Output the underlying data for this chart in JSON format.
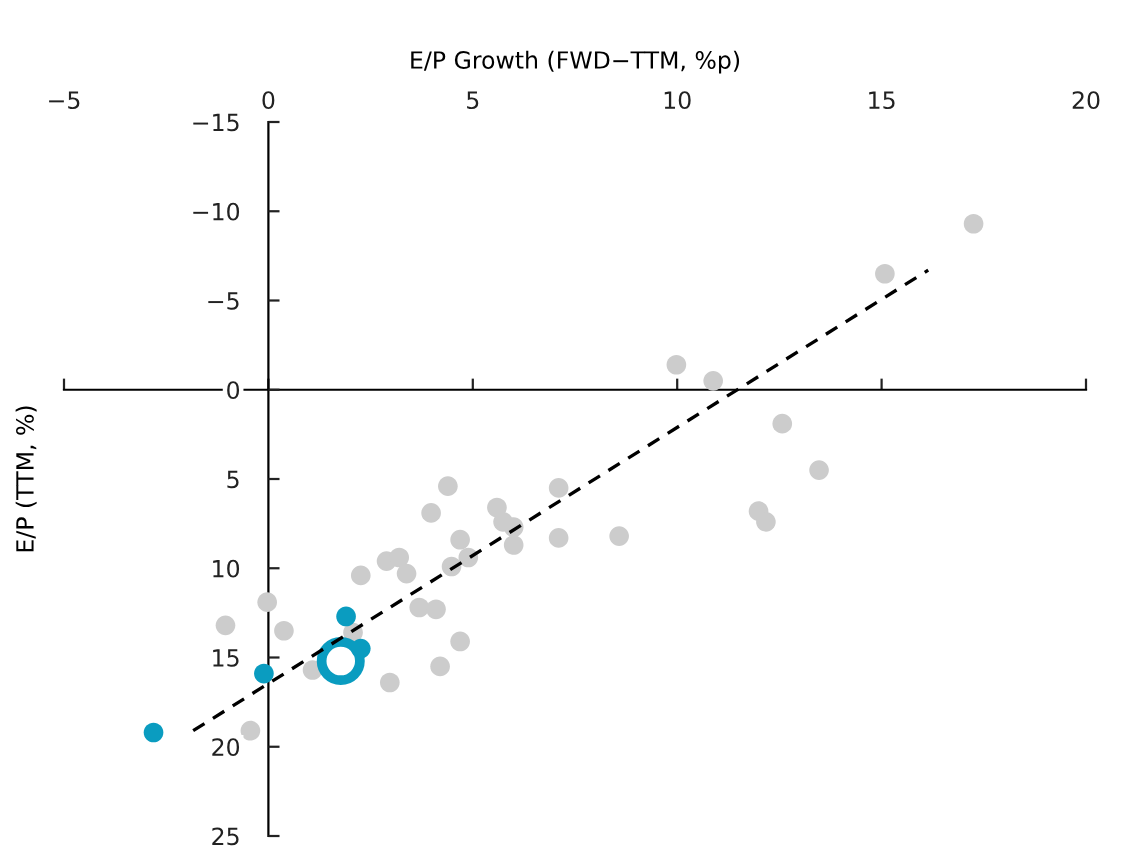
{
  "chart_data": {
    "type": "scatter",
    "xlabel": "E/P Growth (FWD−TTM, %p)",
    "ylabel": "E/P (TTM, %)",
    "xlim": [
      -5,
      20
    ],
    "xticks": [
      -5,
      0,
      5,
      10,
      15,
      20
    ],
    "ylim": [
      25,
      -15
    ],
    "yticks": [
      -15,
      -10,
      -5,
      0,
      5,
      10,
      15,
      20,
      25
    ],
    "legend": false,
    "marker": "circle",
    "series": [
      {
        "color": "#cccccc",
        "x": [
          -1.05,
          -0.03,
          0.38,
          -0.44,
          1.08,
          2.07,
          2.26,
          2.89,
          3.2,
          3.38,
          2.97,
          3.69,
          4.1,
          3.98,
          4.39,
          4.69,
          4.48,
          4.89,
          4.69,
          4.2,
          5.59,
          5.74,
          6.0,
          6.0,
          7.1,
          7.1,
          8.58,
          9.98,
          10.88,
          12.57,
          13.47,
          11.99,
          12.17,
          15.08,
          17.25
        ],
        "values": [
          13.2,
          11.9,
          13.5,
          19.1,
          15.7,
          13.6,
          10.4,
          9.6,
          9.4,
          10.3,
          16.4,
          12.2,
          12.3,
          6.9,
          5.4,
          8.4,
          9.9,
          9.4,
          14.1,
          15.5,
          6.6,
          7.4,
          7.7,
          8.7,
          5.5,
          8.3,
          8.2,
          -1.4,
          -0.5,
          1.9,
          4.5,
          6.8,
          7.4,
          -6.5,
          -9.3
        ]
      },
      {
        "color": "#0a9cc0",
        "x": [
          -2.81,
          -0.11,
          1.9,
          2.26
        ],
        "values": [
          19.2,
          15.9,
          12.7,
          14.5
        ]
      },
      {
        "type": "bubble",
        "color": "#0a9cc0",
        "x": [
          1.77
        ],
        "values": [
          15.2
        ],
        "sizes": [
          1
        ]
      },
      {
        "type": "line",
        "color": "#000000",
        "line_style": "dashed",
        "marker": "none",
        "x": [
          -1.84,
          16.14
        ],
        "values": [
          19.1,
          -6.7
        ]
      }
    ]
  }
}
